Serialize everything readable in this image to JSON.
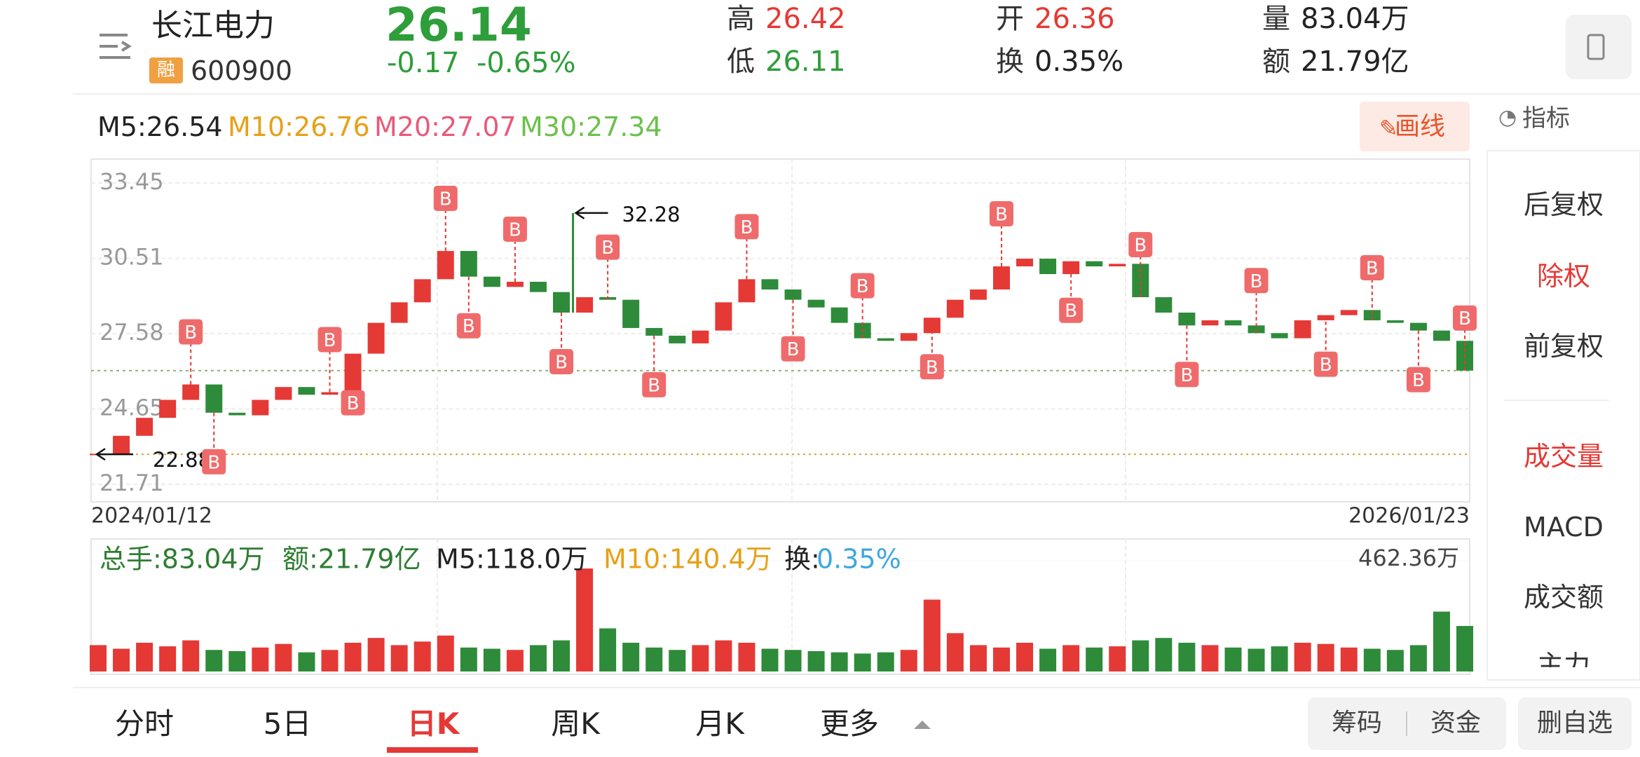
{
  "header": {
    "name": "长江电力",
    "badge": "融",
    "code": "600900",
    "price": "26.14",
    "change": "-0.17",
    "change_pct": "-0.65%",
    "stats": [
      {
        "label": "高",
        "value": "26.42"
      },
      {
        "label": "低",
        "value": "26.11"
      },
      {
        "label": "开",
        "value": "26.36"
      },
      {
        "label": "换",
        "value": "0.35%"
      },
      {
        "label": "量",
        "value": "83.04万"
      },
      {
        "label": "额",
        "value": "21.79亿"
      }
    ]
  },
  "toolbar": {
    "ma": [
      "M5:26.54",
      "M10:26.76",
      "M20:27.07",
      "M30:27.34"
    ],
    "draw_button": "画线",
    "indicator_button": "指标"
  },
  "side_menu": [
    "后复权",
    "除权",
    "前复权",
    "成交量",
    "MACD",
    "成交额",
    "主力"
  ],
  "chart_data": {
    "type": "candlestick",
    "closes": [
      22.9,
      23.6,
      24.3,
      25.0,
      25.6,
      24.5,
      24.4,
      25.0,
      25.5,
      25.2,
      25.3,
      26.8,
      28.0,
      28.8,
      29.7,
      30.8,
      29.8,
      29.4,
      29.6,
      29.2,
      28.4,
      29.0,
      28.9,
      27.8,
      27.5,
      27.2,
      27.7,
      28.8,
      29.7,
      29.3,
      28.9,
      28.6,
      28.0,
      27.4,
      27.3,
      27.6,
      28.2,
      28.9,
      29.3,
      30.2,
      30.5,
      29.9,
      30.4,
      30.2,
      30.3,
      29.0,
      28.4,
      27.9,
      28.1,
      27.9,
      27.6,
      27.4,
      28.1,
      28.3,
      28.5,
      28.1,
      28.0,
      27.7,
      27.3,
      26.14
    ],
    "ylim": [
      21.71,
      33.45
    ],
    "yticks": [
      33.45,
      30.51,
      27.58,
      24.65,
      21.71
    ],
    "price_line": 26.14,
    "low_line": 22.88,
    "high": 32.28,
    "low": 22.88,
    "start_date": "2024/01/12",
    "end_date": "2026/01/23",
    "signals": [
      {
        "at": 4,
        "label": "B"
      },
      {
        "at": 5,
        "label": "B"
      },
      {
        "at": 10,
        "label": "B"
      },
      {
        "at": 11,
        "label": "B"
      },
      {
        "at": 15,
        "label": "B"
      },
      {
        "at": 16,
        "label": "B"
      },
      {
        "at": 18,
        "label": "B"
      },
      {
        "at": 20,
        "label": "B"
      },
      {
        "at": 22,
        "label": "B"
      },
      {
        "at": 24,
        "label": "B"
      },
      {
        "at": 28,
        "label": "B"
      },
      {
        "at": 30,
        "label": "B"
      },
      {
        "at": 33,
        "label": "B"
      },
      {
        "at": 36,
        "label": "B"
      },
      {
        "at": 39,
        "label": "B"
      },
      {
        "at": 42,
        "label": "B"
      },
      {
        "at": 45,
        "label": "B"
      },
      {
        "at": 47,
        "label": "B"
      },
      {
        "at": 50,
        "label": "B"
      },
      {
        "at": 53,
        "label": "B"
      },
      {
        "at": 55,
        "label": "B"
      },
      {
        "at": 57,
        "label": "B"
      },
      {
        "at": 59,
        "label": "B"
      }
    ],
    "volume": {
      "summary": [
        {
          "text": "总手:83.04万",
          "color": "#2e7d32"
        },
        {
          "text": "额:21.79亿",
          "color": "#2e7d32"
        },
        {
          "text": "M5:118.0万",
          "color": "#222222"
        },
        {
          "text": "M10:140.4万",
          "color": "#e6a117"
        },
        {
          "text": "换:",
          "color": "#222222"
        },
        {
          "text": "0.35%",
          "color": "#3fa7e0"
        }
      ],
      "values": [
        110,
        95,
        120,
        105,
        130,
        90,
        85,
        100,
        115,
        80,
        90,
        120,
        140,
        110,
        125,
        150,
        100,
        95,
        90,
        110,
        130,
        430,
        180,
        120,
        100,
        90,
        110,
        130,
        120,
        95,
        90,
        85,
        80,
        75,
        80,
        90,
        300,
        160,
        110,
        100,
        120,
        95,
        110,
        100,
        105,
        130,
        140,
        120,
        110,
        100,
        95,
        105,
        120,
        115,
        100,
        95,
        90,
        110,
        250,
        190
      ],
      "ylim": [
        0,
        462.36
      ],
      "yticks": [
        {
          "value": 462.36,
          "label": "462.36万"
        }
      ]
    }
  },
  "tabs": [
    "分时",
    "5日",
    "日K",
    "周K",
    "月K",
    "更多"
  ],
  "buttons": [
    "筹码",
    "资金",
    "删自选"
  ]
}
